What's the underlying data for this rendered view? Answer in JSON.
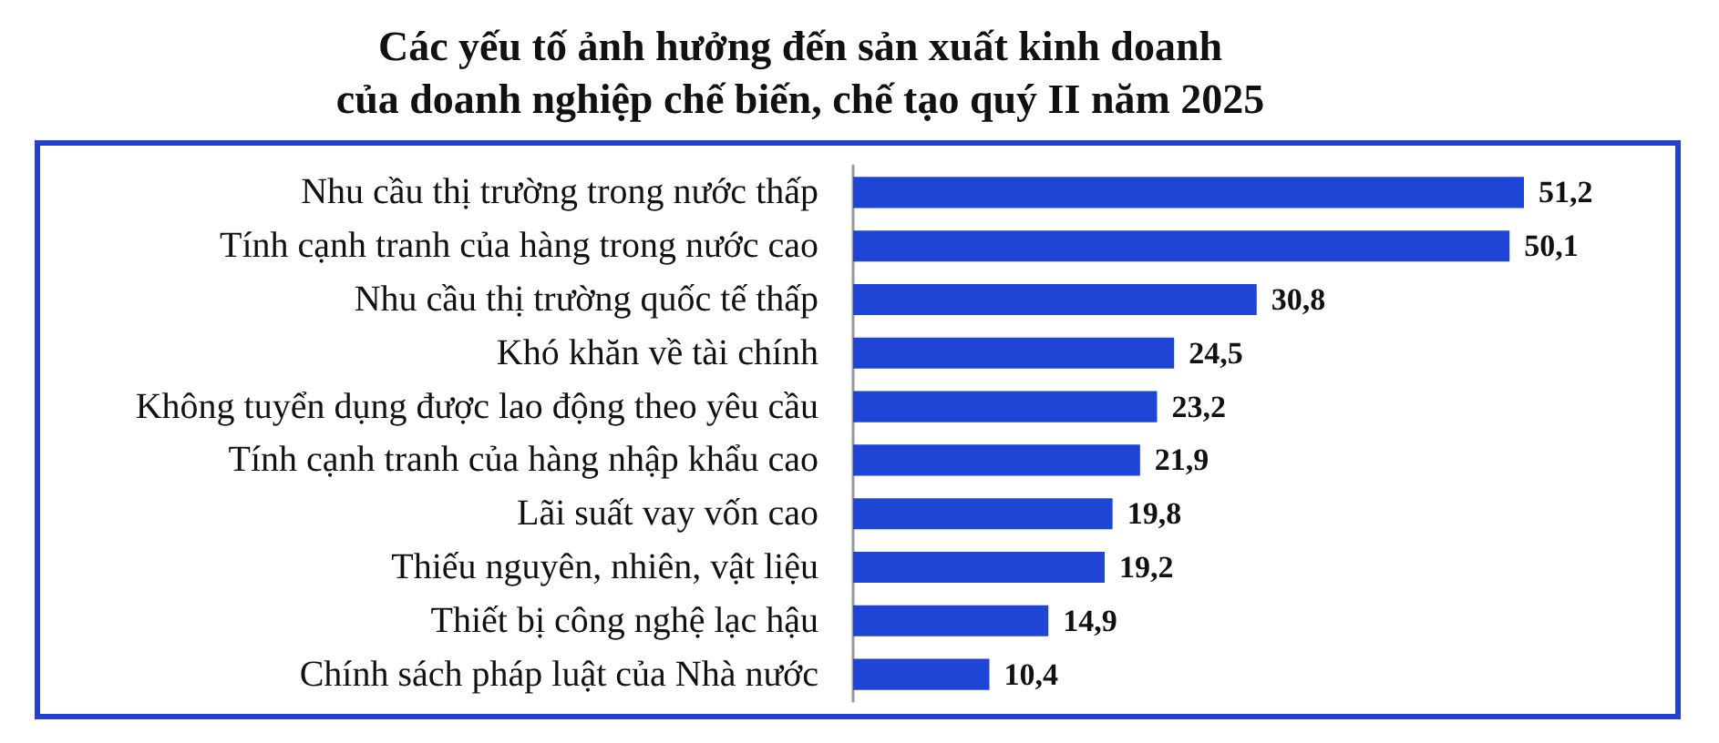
{
  "chart_data": {
    "type": "bar",
    "orientation": "horizontal",
    "title": "Các yếu tố ảnh hưởng đến sản xuất kinh doanh\ncủa doanh nghiệp chế biến, chế tạo quý II năm 2025",
    "categories": [
      "Nhu cầu thị trường trong nước thấp",
      "Tính cạnh tranh của hàng trong nước cao",
      "Nhu cầu thị trường quốc tế thấp",
      "Khó khăn về tài chính",
      "Không tuyển dụng được lao động theo yêu cầu",
      "Tính cạnh tranh của hàng nhập khẩu cao",
      "Lãi suất vay vốn cao",
      "Thiếu nguyên, nhiên, vật liệu",
      "Thiết bị công nghệ lạc hậu",
      "Chính sách pháp luật của Nhà nước"
    ],
    "values": [
      51.2,
      50.1,
      30.8,
      24.5,
      23.2,
      21.9,
      19.8,
      19.2,
      14.9,
      10.4
    ],
    "value_labels": [
      "51,2",
      "50,1",
      "30,8",
      "24,5",
      "23,2",
      "21,9",
      "19,8",
      "19,2",
      "14,9",
      "10,4"
    ],
    "color": "#1f45d6",
    "tick_labels": "y"
  }
}
